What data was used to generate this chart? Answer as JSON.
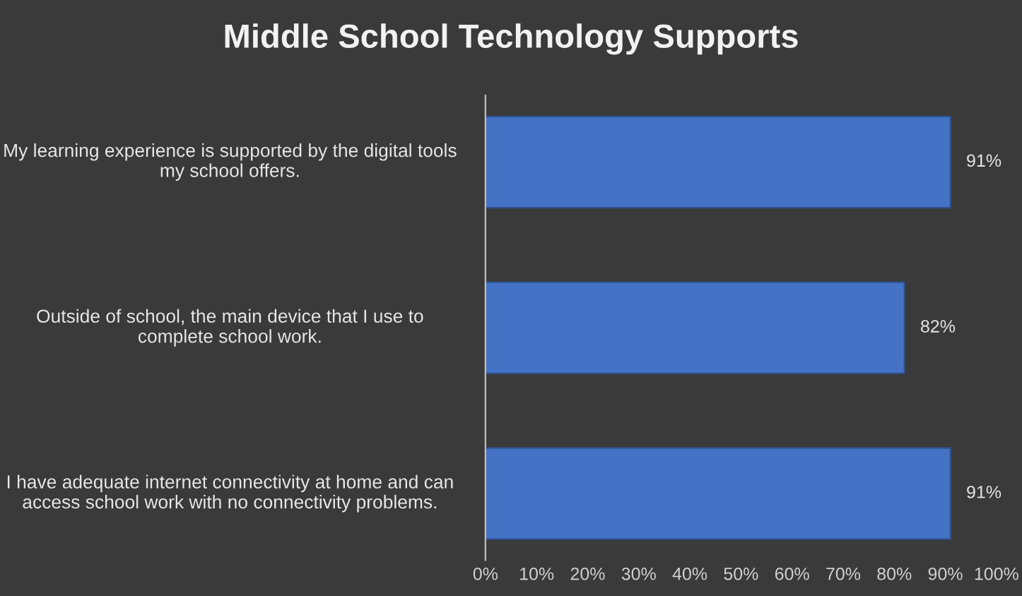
{
  "chart_data": {
    "type": "bar",
    "orientation": "horizontal",
    "title": "Middle School Technology Supports",
    "categories": [
      "My learning experience is supported by the digital tools my school offers.",
      "Outside of school, the main device that I use to complete school work.",
      "I have adequate internet connectivity at home and can access school work with no connectivity problems."
    ],
    "values": [
      91,
      82,
      91
    ],
    "value_labels": [
      "91%",
      "82%",
      "91%"
    ],
    "color": "#4472c4",
    "xlim": [
      0,
      100
    ],
    "xticks": [
      {
        "value": 0,
        "label": "0%"
      },
      {
        "value": 10,
        "label": "10%"
      },
      {
        "value": 20,
        "label": "20%"
      },
      {
        "value": 30,
        "label": "30%"
      },
      {
        "value": 40,
        "label": "40%"
      },
      {
        "value": 50,
        "label": "50%"
      },
      {
        "value": 60,
        "label": "60%"
      },
      {
        "value": 70,
        "label": "70%"
      },
      {
        "value": 80,
        "label": "80%"
      },
      {
        "value": 90,
        "label": "90%"
      },
      {
        "value": 100,
        "label": "100%"
      }
    ],
    "grid": false,
    "legend": false
  }
}
